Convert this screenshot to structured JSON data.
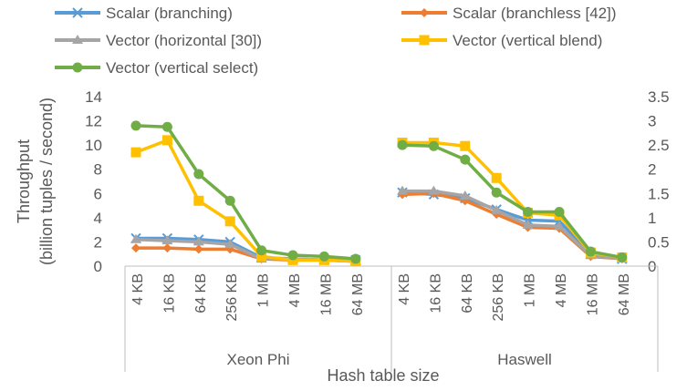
{
  "chart_data": {
    "type": "line",
    "xlabel": "Hash table size",
    "ylabel": "Throughput\n(billion tuples / second)",
    "y_left_lim": [
      0,
      14
    ],
    "y_left_ticks": [
      "0",
      "2",
      "4",
      "6",
      "8",
      "10",
      "12",
      "14"
    ],
    "y_right_lim": [
      0,
      3.5
    ],
    "y_right_ticks": [
      "0",
      "0.5",
      "1",
      "1.5",
      "2",
      "2.5",
      "3",
      "3.5"
    ],
    "grid": false,
    "legend_position": "top",
    "groups": [
      {
        "name": "Xeon Phi",
        "axis": "left",
        "categories": [
          "4 KB",
          "16 KB",
          "64 KB",
          "256 KB",
          "1 MB",
          "4 MB",
          "16 MB",
          "64 MB"
        ],
        "series": [
          {
            "name": "Scalar (branching)",
            "values": [
              2.3,
              2.3,
              2.2,
              2.0,
              0.7,
              0.6,
              0.5,
              0.5
            ]
          },
          {
            "name": "Scalar (branchless [42])",
            "values": [
              1.5,
              1.5,
              1.4,
              1.4,
              0.6,
              0.5,
              0.5,
              0.4
            ]
          },
          {
            "name": "Vector (horizontal [30])",
            "values": [
              2.2,
              2.1,
              2.0,
              1.8,
              0.6,
              0.6,
              0.5,
              0.4
            ]
          },
          {
            "name": "Vector (vertical blend)",
            "values": [
              9.4,
              10.4,
              5.4,
              3.7,
              0.8,
              0.5,
              0.5,
              0.4
            ]
          },
          {
            "name": "Vector (vertical select)",
            "values": [
              11.6,
              11.5,
              7.6,
              5.4,
              1.3,
              0.9,
              0.8,
              0.6
            ]
          }
        ]
      },
      {
        "name": "Haswell",
        "axis": "right",
        "categories": [
          "4 KB",
          "16 KB",
          "64 KB",
          "256 KB",
          "1 MB",
          "4 MB",
          "16 MB",
          "64 MB"
        ],
        "series": [
          {
            "name": "Scalar (branching)",
            "values": [
              1.52,
              1.48,
              1.4,
              1.17,
              0.95,
              0.93,
              0.25,
              0.15
            ]
          },
          {
            "name": "Scalar (branchless [42])",
            "values": [
              1.48,
              1.5,
              1.35,
              1.07,
              0.8,
              0.78,
              0.2,
              0.15
            ]
          },
          {
            "name": "Vector (horizontal [30])",
            "values": [
              1.55,
              1.55,
              1.45,
              1.15,
              0.85,
              0.82,
              0.22,
              0.15
            ]
          },
          {
            "name": "Vector (vertical blend)",
            "values": [
              2.55,
              2.55,
              2.48,
              1.82,
              1.1,
              1.05,
              0.28,
              0.18
            ]
          },
          {
            "name": "Vector (vertical select)",
            "values": [
              2.5,
              2.48,
              2.2,
              1.52,
              1.12,
              1.12,
              0.3,
              0.18
            ]
          }
        ]
      }
    ]
  },
  "colors": {
    "Scalar (branching)": "#5b9bd5",
    "Scalar (branchless [42])": "#ed7d31",
    "Vector (horizontal [30])": "#a5a5a5",
    "Vector (vertical blend)": "#ffc000",
    "Vector (vertical select)": "#70ad47",
    "axis": "#bfbfbf",
    "text": "#595959"
  },
  "markers": {
    "Scalar (branching)": "x",
    "Scalar (branchless [42])": "diamond",
    "Vector (horizontal [30])": "triangle",
    "Vector (vertical blend)": "square",
    "Vector (vertical select)": "circle"
  }
}
